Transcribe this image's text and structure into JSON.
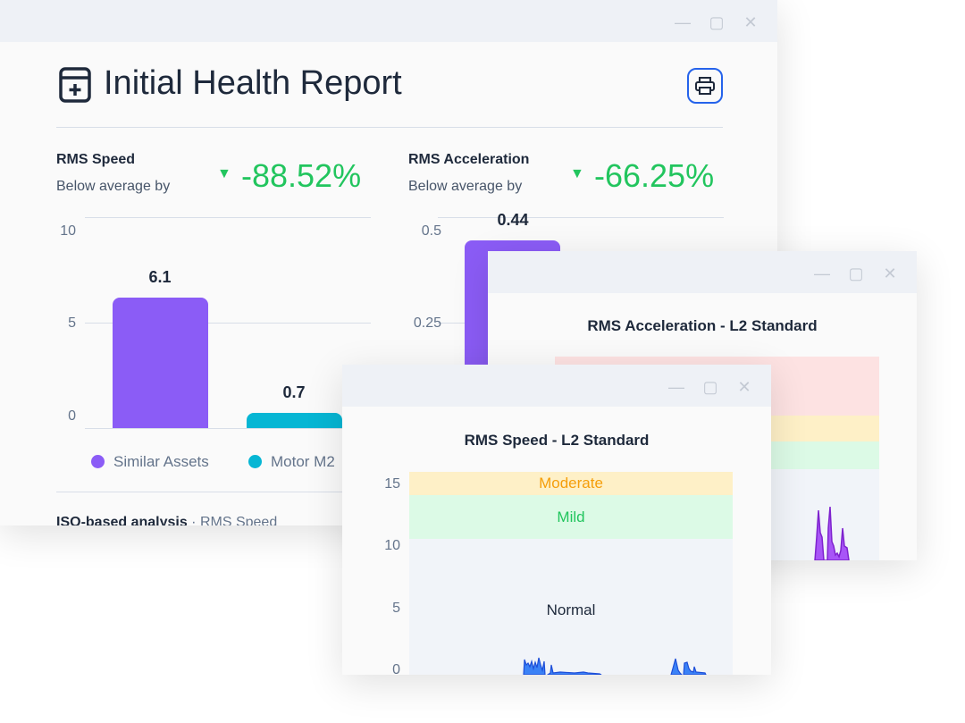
{
  "report_window": {
    "title": "Initial Health Report",
    "print_label": "print",
    "speed": {
      "label": "RMS Speed",
      "sub": "Below average by",
      "delta": "-88.52%",
      "ticks": [
        "10",
        "5",
        "0"
      ],
      "bars": [
        {
          "series": "Similar Assets",
          "value": 6.1,
          "label": "6.1"
        },
        {
          "series": "Motor M2",
          "value": 0.7,
          "label": "0.7"
        }
      ],
      "ymax": 10
    },
    "accel": {
      "label": "RMS Acceleration",
      "sub": "Below average by",
      "delta": "-66.25%",
      "ticks": [
        "0.5",
        "0.25"
      ],
      "bars": [
        {
          "series": "Similar Assets",
          "value": 0.44,
          "label": "0.44"
        }
      ],
      "ymax": 0.5
    },
    "legend": [
      "Similar Assets",
      "Motor M2"
    ],
    "section_heading": "ISO-based analysis",
    "section_sub": "RMS Speed"
  },
  "accel_window": {
    "title": "RMS Acceleration - L2 Standard"
  },
  "speed_window": {
    "title": "RMS Speed - L2 Standard",
    "ticks": [
      "15",
      "10",
      "5",
      "0"
    ],
    "zones": {
      "moderate": "Moderate",
      "mild": "Mild",
      "normal": "Normal"
    }
  },
  "colors": {
    "purple": "#8b5cf6",
    "cyan": "#06b6d4",
    "green": "#22c55e",
    "moderate": "#fef0c7",
    "mild": "#dcfae6",
    "severe": "#fde2e2",
    "normal": "#f1f4f9",
    "line_blue": "#1d4ed8"
  }
}
